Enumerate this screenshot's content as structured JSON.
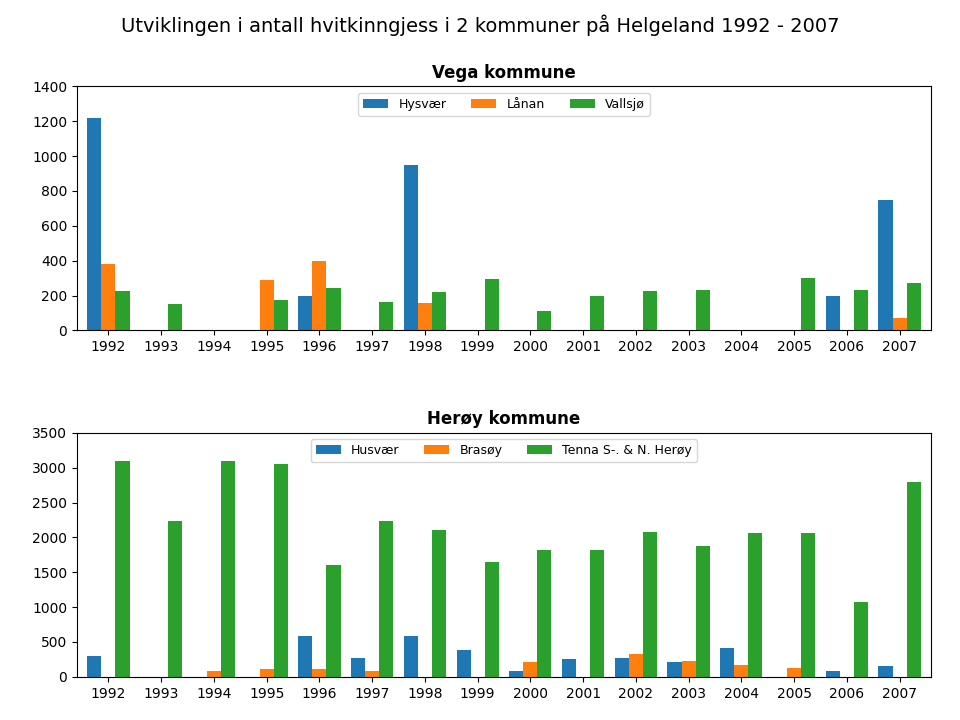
{
  "title": "Utviklingen i antall hvitkinngjess i 2 kommuner på Helgeland 1992 - 2007",
  "chart_data": [
    {
      "type": "bar",
      "title": "Vega kommune",
      "categories": [
        "1992",
        "1993",
        "1994",
        "1995",
        "1996",
        "1997",
        "1998",
        "1999",
        "2000",
        "2001",
        "2002",
        "2003",
        "2004",
        "2005",
        "2006",
        "2007"
      ],
      "series": [
        {
          "name": "Hysvær",
          "values": [
            1220,
            0,
            0,
            0,
            200,
            0,
            950,
            0,
            0,
            0,
            0,
            0,
            0,
            0,
            200,
            750
          ]
        },
        {
          "name": "Lånan",
          "values": [
            380,
            0,
            0,
            290,
            400,
            0,
            155,
            0,
            0,
            0,
            0,
            0,
            0,
            0,
            0,
            70
          ]
        },
        {
          "name": "Vallsjø",
          "values": [
            225,
            150,
            0,
            175,
            245,
            160,
            220,
            295,
            110,
            200,
            225,
            230,
            0,
            300,
            230,
            270
          ]
        }
      ],
      "ylim": [
        0,
        1400
      ],
      "yticks": [
        0,
        200,
        400,
        600,
        800,
        1000,
        1200,
        1400
      ],
      "grid": false,
      "legend": "upper center"
    },
    {
      "type": "bar",
      "title": "Herøy kommune",
      "categories": [
        "1992",
        "1993",
        "1994",
        "1995",
        "1996",
        "1997",
        "1998",
        "1999",
        "2000",
        "2001",
        "2002",
        "2003",
        "2004",
        "2005",
        "2006",
        "2007"
      ],
      "series": [
        {
          "name": "Husvær",
          "values": [
            300,
            0,
            0,
            0,
            580,
            270,
            590,
            390,
            80,
            260,
            270,
            210,
            420,
            0,
            80,
            150
          ]
        },
        {
          "name": "Brasøy",
          "values": [
            0,
            0,
            90,
            110,
            110,
            90,
            0,
            0,
            215,
            0,
            330,
            220,
            175,
            120,
            0,
            0
          ]
        },
        {
          "name": "Tenna S-. & N. Herøy",
          "values": [
            3100,
            2230,
            3100,
            3050,
            1600,
            2230,
            2100,
            1650,
            1820,
            1820,
            2080,
            1870,
            2060,
            2060,
            1080,
            2800
          ]
        }
      ],
      "ylim": [
        0,
        3500
      ],
      "yticks": [
        0,
        500,
        1000,
        1500,
        2000,
        2500,
        3000,
        3500
      ],
      "grid": false,
      "legend": "upper center"
    }
  ]
}
